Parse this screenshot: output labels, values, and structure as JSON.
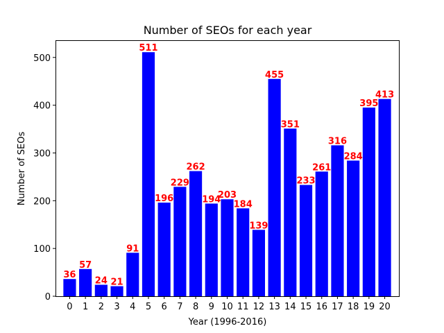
{
  "chart_data": {
    "type": "bar",
    "title": "Number of SEOs for each year",
    "xlabel": "Year (1996-2016)",
    "ylabel": "Number of SEOs",
    "categories": [
      "0",
      "1",
      "2",
      "3",
      "4",
      "5",
      "6",
      "7",
      "8",
      "9",
      "10",
      "11",
      "12",
      "13",
      "14",
      "15",
      "16",
      "17",
      "18",
      "19",
      "20"
    ],
    "values": [
      36,
      57,
      24,
      21,
      91,
      511,
      196,
      229,
      262,
      194,
      203,
      184,
      139,
      455,
      351,
      233,
      261,
      316,
      284,
      395,
      413
    ],
    "ylim": [
      0,
      536
    ],
    "yticks": [
      0,
      100,
      200,
      300,
      400,
      500
    ],
    "grid": false,
    "legend": "none",
    "bar_color": "#0000ff",
    "data_label_color": "#ff0000"
  }
}
